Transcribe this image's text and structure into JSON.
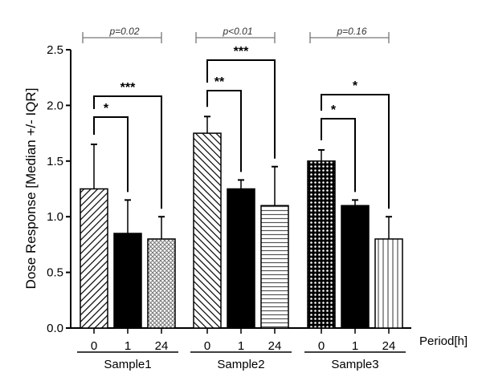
{
  "chart_data": {
    "type": "bar",
    "title": "",
    "xlabel": "Period[h]",
    "ylabel": "Dose Response [Median +/- IQR]",
    "ylim": [
      0,
      2.5
    ],
    "yticks": [
      "0.0",
      "0.5",
      "1.0",
      "1.5",
      "2.0",
      "2.5"
    ],
    "ytick_values": [
      0,
      0.5,
      1.0,
      1.5,
      2.0,
      2.5
    ],
    "grid": false,
    "groups": [
      {
        "name": "Sample1",
        "bars": [
          {
            "category": "0",
            "value": 1.25,
            "error_upper": 1.65,
            "pattern": "diag-forward"
          },
          {
            "category": "1",
            "value": 0.85,
            "error_upper": 1.15,
            "pattern": "solid"
          },
          {
            "category": "24",
            "value": 0.8,
            "error_upper": 1.0,
            "pattern": "crosshatch-light"
          }
        ],
        "group_p": "p=0.02",
        "comparisons": [
          {
            "from": "0",
            "to": "1",
            "stars": "*"
          },
          {
            "from": "0",
            "to": "24",
            "stars": "***"
          }
        ]
      },
      {
        "name": "Sample2",
        "bars": [
          {
            "category": "0",
            "value": 1.75,
            "error_upper": 1.9,
            "pattern": "diag-backward"
          },
          {
            "category": "1",
            "value": 1.25,
            "error_upper": 1.33,
            "pattern": "solid"
          },
          {
            "category": "24",
            "value": 1.1,
            "error_upper": 1.45,
            "pattern": "horizontal"
          }
        ],
        "group_p": "p<0.01",
        "comparisons": [
          {
            "from": "0",
            "to": "1",
            "stars": "**"
          },
          {
            "from": "0",
            "to": "24",
            "stars": "***"
          }
        ]
      },
      {
        "name": "Sample3",
        "bars": [
          {
            "category": "0",
            "value": 1.5,
            "error_upper": 1.6,
            "pattern": "checker"
          },
          {
            "category": "1",
            "value": 1.1,
            "error_upper": 1.15,
            "pattern": "solid"
          },
          {
            "category": "24",
            "value": 0.8,
            "error_upper": 1.0,
            "pattern": "vertical"
          }
        ],
        "group_p": "p=0.16",
        "comparisons": [
          {
            "from": "0",
            "to": "1",
            "stars": "*"
          },
          {
            "from": "0",
            "to": "24",
            "stars": "*"
          }
        ]
      }
    ]
  }
}
